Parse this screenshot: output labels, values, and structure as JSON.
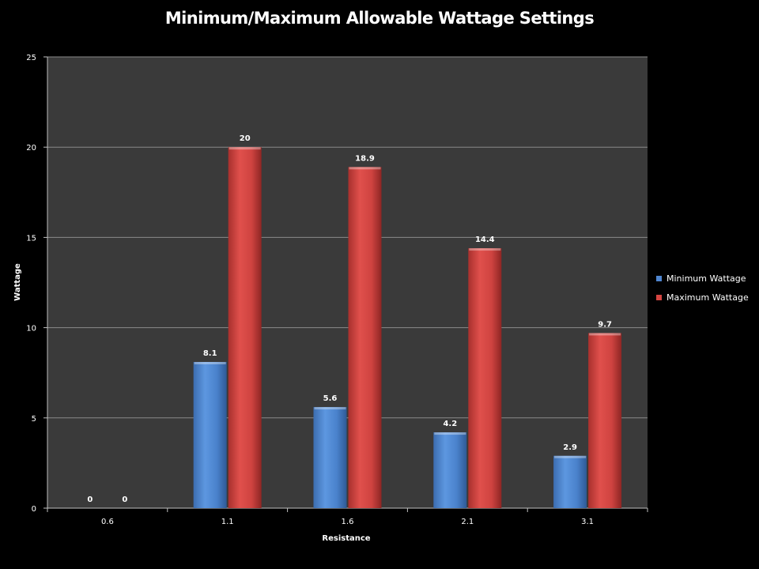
{
  "chart_data": {
    "type": "bar",
    "title": "Minimum/Maximum Allowable Wattage Settings",
    "xlabel": "Resistance",
    "ylabel": "Wattage",
    "categories": [
      "0.6",
      "1.1",
      "1.6",
      "2.1",
      "3.1"
    ],
    "series": [
      {
        "name": "Minimum Wattage",
        "color": "#4f86d0",
        "values": [
          0,
          8.1,
          5.6,
          4.2,
          2.9
        ],
        "labels": [
          "0",
          "8.1",
          "5.6",
          "4.2",
          "2.9"
        ]
      },
      {
        "name": "Maximum Wattage",
        "color": "#d64541",
        "values": [
          0,
          20,
          18.9,
          14.4,
          9.7
        ],
        "labels": [
          "0",
          "20",
          "18.9",
          "14.4",
          "9.7"
        ]
      }
    ],
    "ylim": [
      0,
      25
    ],
    "yticks": [
      "0",
      "5",
      "10",
      "15",
      "20",
      "25"
    ],
    "grid": true,
    "legend_position": "right",
    "plot_background": "#3a3a3a",
    "page_background": "#000000"
  }
}
